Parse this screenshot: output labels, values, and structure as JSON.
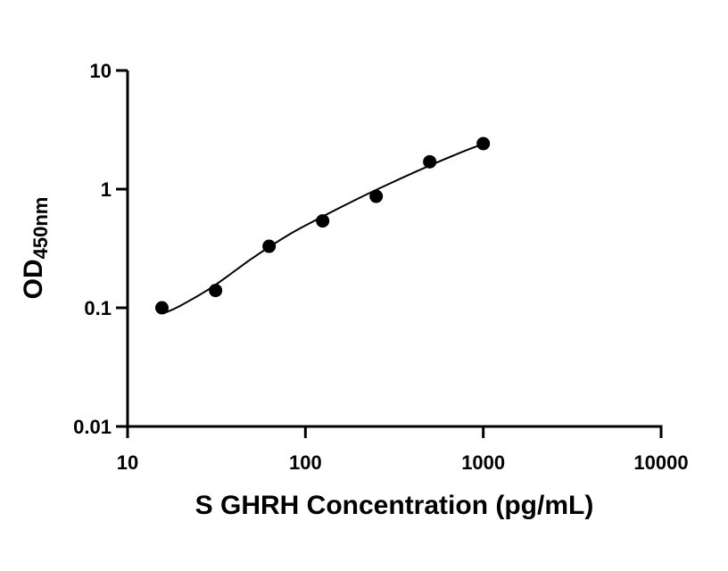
{
  "chart_data": {
    "type": "scatter",
    "xlabel": "S GHRH Concentration (pg/mL)",
    "ylabel": "OD450nm",
    "ylabel_main": "OD",
    "ylabel_sub": "450nm",
    "x_scale": "log",
    "y_scale": "log",
    "xlim": [
      10,
      10000
    ],
    "ylim": [
      0.01,
      10
    ],
    "x_ticks": [
      10,
      100,
      1000,
      10000
    ],
    "x_tick_labels": [
      "10",
      "100",
      "1000",
      "10000"
    ],
    "y_ticks": [
      0.01,
      0.1,
      1,
      10
    ],
    "y_tick_labels": [
      "0.01",
      "0.1",
      "1",
      "10"
    ],
    "grid": false,
    "series": [
      {
        "x": [
          15.6,
          31.25,
          62.5,
          125,
          250,
          500,
          1000
        ],
        "y": [
          0.1,
          0.14,
          0.33,
          0.54,
          0.87,
          1.7,
          2.42
        ]
      }
    ],
    "fit_curve": {
      "x": [
        16,
        20,
        30,
        50,
        80,
        120,
        200,
        300,
        500,
        800,
        1000
      ],
      "y": [
        0.09,
        0.105,
        0.15,
        0.26,
        0.41,
        0.57,
        0.84,
        1.12,
        1.58,
        2.12,
        2.4
      ]
    }
  }
}
